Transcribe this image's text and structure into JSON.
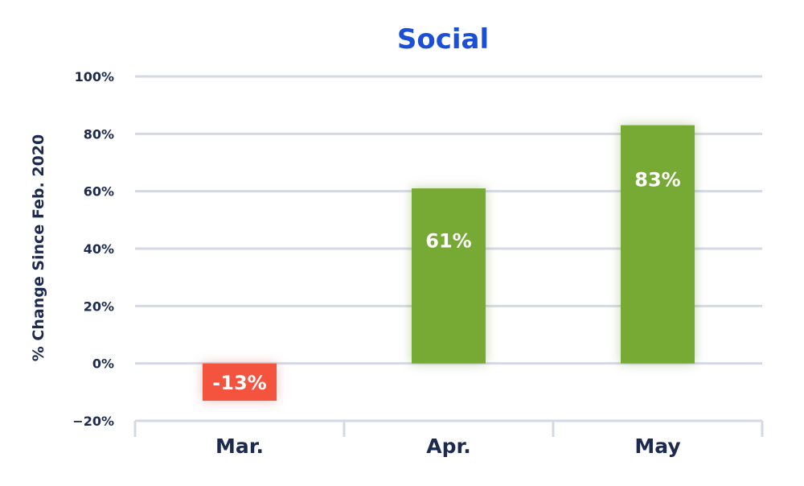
{
  "chart_data": {
    "type": "bar",
    "title": "Social",
    "xlabel": "",
    "ylabel": "% Change Since Feb. 2020",
    "categories": [
      "Mar.",
      "Apr.",
      "May"
    ],
    "values": [
      -13,
      61,
      83
    ],
    "value_labels": [
      "-13%",
      "61%",
      "83%"
    ],
    "ylim": [
      -20,
      100
    ],
    "yticks": [
      -20,
      0,
      20,
      40,
      60,
      80,
      100
    ],
    "ytick_labels": [
      "−20%",
      "0%",
      "20%",
      "40%",
      "60%",
      "80%",
      "100%"
    ],
    "grid": true,
    "legend": "none"
  },
  "colors": {
    "title": "#1a4fd6",
    "text": "#1b2a4e",
    "positive_bar": "#77a936",
    "negative_bar": "#f4533e",
    "grid": "#d5d9e6",
    "bar_label": "#ffffff"
  }
}
